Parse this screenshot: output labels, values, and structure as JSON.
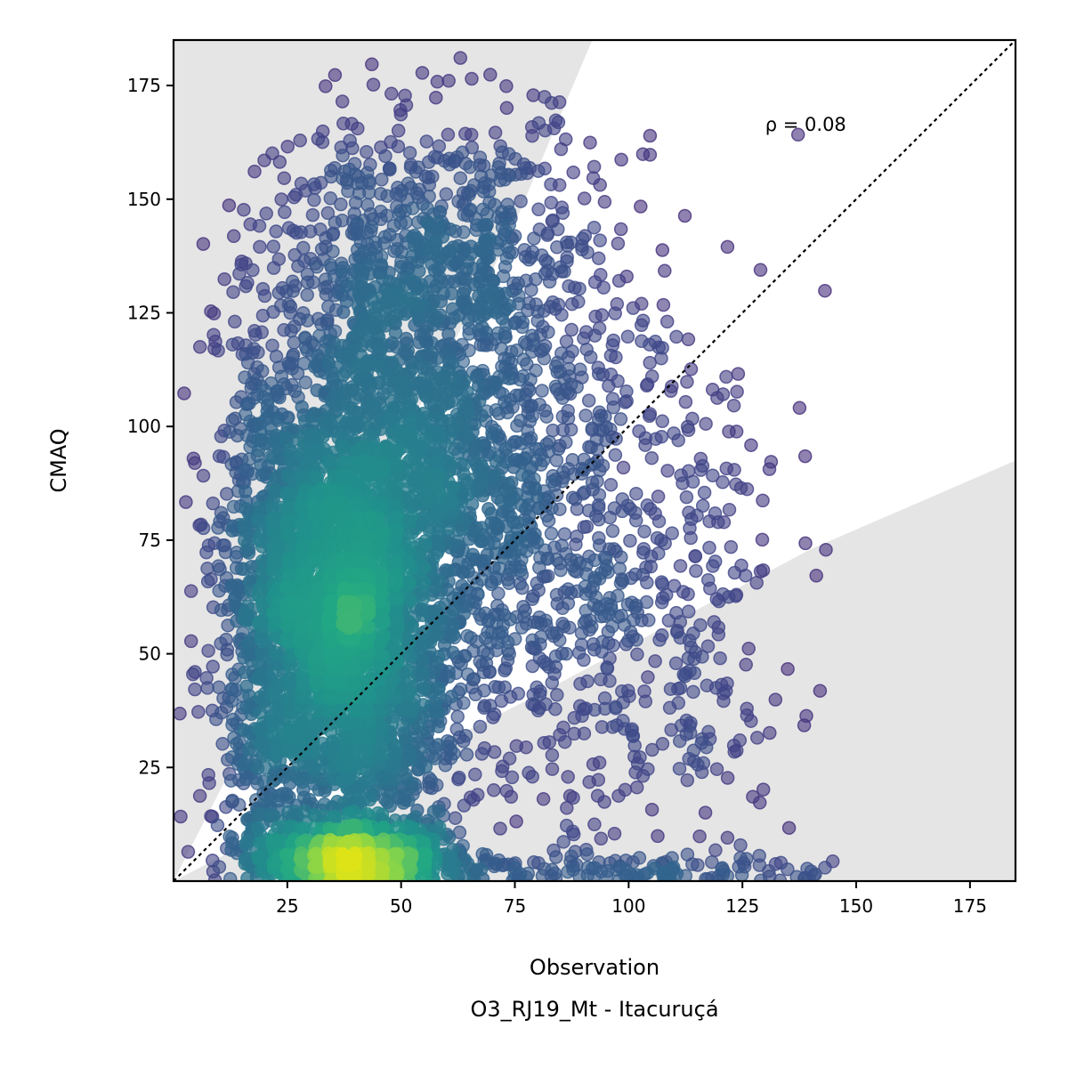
{
  "chart_data": {
    "type": "scatter",
    "title": "",
    "xlabel": "Observation",
    "xlabel_sub": "O3_RJ19_Mt - Itacuruçá",
    "ylabel": "CMAQ",
    "xlim": [
      0,
      185
    ],
    "ylim": [
      0,
      185
    ],
    "xticks": [
      "25",
      "50",
      "75",
      "100",
      "125",
      "150",
      "175"
    ],
    "yticks": [
      "25",
      "50",
      "75",
      "100",
      "125",
      "150",
      "175"
    ],
    "xtick_values": [
      25,
      50,
      75,
      100,
      125,
      150,
      175
    ],
    "ytick_values": [
      25,
      50,
      75,
      100,
      125,
      150,
      175
    ],
    "annotation": "ρ = 0.08",
    "reference_line": "y = x (dotted)",
    "colormap": "viridis (point density)",
    "grid": false,
    "shaded_regions": [
      {
        "name": "upper",
        "points": [
          [
            0,
            0
          ],
          [
            0,
            185
          ],
          [
            92,
            185
          ],
          [
            73,
            140
          ],
          [
            41,
            80
          ],
          [
            0,
            0
          ]
        ]
      },
      {
        "name": "lower",
        "points": [
          [
            0,
            0
          ],
          [
            185,
            0
          ],
          [
            185,
            92.5
          ],
          [
            140,
            73
          ],
          [
            80,
            41
          ],
          [
            0,
            0
          ]
        ]
      }
    ],
    "clusters": [
      {
        "cx": 38,
        "cy": 58,
        "sx": 11,
        "sy": 28,
        "n": 2600
      },
      {
        "cx": 40,
        "cy": 5,
        "sx": 12,
        "sy": 4,
        "n": 900
      },
      {
        "cx": 55,
        "cy": 100,
        "sx": 18,
        "sy": 30,
        "n": 1300
      },
      {
        "cx": 80,
        "cy": 70,
        "sx": 22,
        "sy": 35,
        "n": 700
      },
      {
        "cx": 20,
        "cy": 60,
        "sx": 6,
        "sy": 35,
        "n": 500
      },
      {
        "cx": 60,
        "cy": 140,
        "sx": 18,
        "sy": 15,
        "n": 350
      },
      {
        "cx": 110,
        "cy": 60,
        "sx": 14,
        "sy": 40,
        "n": 220
      },
      {
        "cx": 100,
        "cy": 2,
        "sx": 25,
        "sy": 2,
        "n": 150
      }
    ],
    "colors": {
      "low_density": "#472c7a",
      "high_density": "#dde318",
      "shade": "#e5e5e5"
    }
  }
}
